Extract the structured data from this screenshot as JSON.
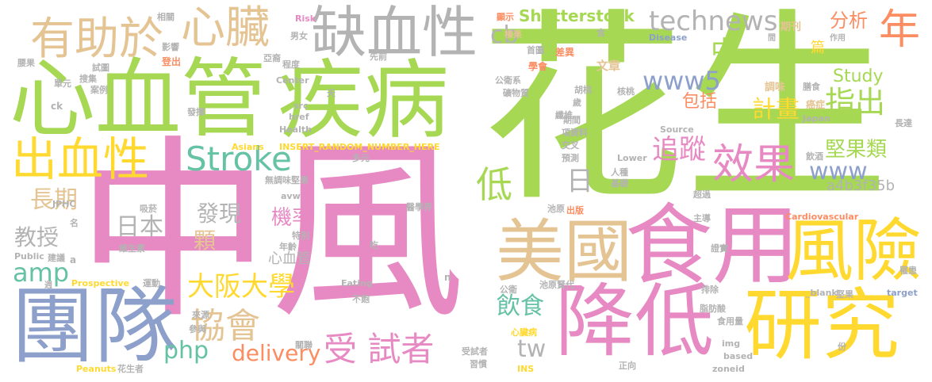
{
  "words": [
    {
      "id": "w0",
      "text": "中風",
      "color": "#e78ac3"
    },
    {
      "id": "w1",
      "text": "花生",
      "color": "#a6d854"
    },
    {
      "id": "w2",
      "text": "心血管",
      "color": "#a6d854"
    },
    {
      "id": "w3",
      "text": "疾病",
      "color": "#a6d854"
    },
    {
      "id": "w4",
      "text": "團隊",
      "color": "#8da0cb"
    },
    {
      "id": "w5",
      "text": "降低",
      "color": "#e78ac3"
    },
    {
      "id": "w6",
      "text": "食用",
      "color": "#e78ac3"
    },
    {
      "id": "w7",
      "text": "研究",
      "color": "#ffd92f"
    },
    {
      "id": "w8",
      "text": "風險",
      "color": "#ffd92f"
    },
    {
      "id": "w9",
      "text": "美國",
      "color": "#e5c494"
    },
    {
      "id": "w10",
      "text": "缺血性",
      "color": "#b3b3b3"
    },
    {
      "id": "w11",
      "text": "有助於",
      "color": "#e5c494"
    },
    {
      "id": "w12",
      "text": "心臟",
      "color": "#e5c494"
    },
    {
      "id": "w13",
      "text": "出血性",
      "color": "#ffd92f"
    },
    {
      "id": "w14",
      "text": "Stroke",
      "color": "#66c2a5"
    },
    {
      "id": "w15",
      "text": "technews",
      "color": "#b3b3b3"
    },
    {
      "id": "w16",
      "text": "效果",
      "color": "#e78ac3"
    },
    {
      "id": "w17",
      "text": "受 試者",
      "color": "#e78ac3"
    },
    {
      "id": "w18",
      "text": "協會",
      "color": "#e5c494"
    },
    {
      "id": "w19",
      "text": "大阪大學",
      "color": "#ffd92f"
    },
    {
      "id": "w20",
      "text": "delivery",
      "color": "#fc8d62"
    },
    {
      "id": "w21",
      "text": "php",
      "color": "#66c2a5"
    },
    {
      "id": "w22",
      "text": "amp",
      "color": "#66c2a5"
    },
    {
      "id": "w23",
      "text": "年",
      "color": "#fc8d62"
    },
    {
      "id": "w24",
      "text": "Shutterstock",
      "color": "#a6d854"
    },
    {
      "id": "w25",
      "text": "www5",
      "color": "#8da0cb"
    },
    {
      "id": "w26",
      "text": "追蹤",
      "color": "#e78ac3"
    },
    {
      "id": "w27",
      "text": "指出",
      "color": "#a6d854"
    },
    {
      "id": "w28",
      "text": "計畫",
      "color": "#ffd92f"
    },
    {
      "id": "w29",
      "text": "堅果類",
      "color": "#a6d854"
    },
    {
      "id": "w30",
      "text": "www",
      "color": "#8da0cb"
    },
    {
      "id": "w31",
      "text": "包括",
      "color": "#fc8d62"
    },
    {
      "id": "w32",
      "text": "分析",
      "color": "#fc8d62"
    },
    {
      "id": "w33",
      "text": "Study",
      "color": "#a6d854"
    },
    {
      "id": "w34",
      "text": "cb",
      "color": "#b3b3b3"
    },
    {
      "id": "w35",
      "text": "長期",
      "color": "#e5c494"
    },
    {
      "id": "w36",
      "text": "教授",
      "color": "#b3b3b3"
    },
    {
      "id": "w37",
      "text": "日本",
      "color": "#b3b3b3"
    },
    {
      "id": "w38",
      "text": "顆",
      "color": "#e5c494"
    },
    {
      "id": "w39",
      "text": "發現",
      "color": "#b3b3b3"
    },
    {
      "id": "w40",
      "text": "機率",
      "color": "#e78ac3"
    },
    {
      "id": "w41",
      "text": "心血管",
      "color": "#b3b3b3"
    },
    {
      "id": "w42",
      "text": "飲食",
      "color": "#66c2a5"
    },
    {
      "id": "w43",
      "text": "tw",
      "color": "#b3b3b3"
    },
    {
      "id": "w44",
      "text": "a4b3f35b",
      "color": "#b3b3b3"
    },
    {
      "id": "w45",
      "text": "低",
      "color": "#a6d854"
    },
    {
      "id": "w46",
      "text": "日",
      "color": "#b3b3b3"
    },
    {
      "id": "w47",
      "text": "中",
      "color": "#a6d854"
    },
    {
      "id": "w48",
      "text": "篇",
      "color": "#ffd92f"
    },
    {
      "id": "w49",
      "text": "期刊",
      "color": "#e5c494"
    },
    {
      "id": "w50",
      "text": "文章",
      "color": "#e5c494"
    },
    {
      "id": "w51",
      "text": "學會",
      "color": "#fc8d62"
    },
    {
      "id": "w52",
      "text": "調味",
      "color": "#e5c494"
    },
    {
      "id": "w53",
      "text": "膳食",
      "color": "#b3b3b3"
    },
    {
      "id": "w54",
      "text": "癌症",
      "color": "#e5c494"
    },
    {
      "id": "w55",
      "text": "顯示",
      "color": "#fc8d62"
    },
    {
      "id": "w56",
      "text": "含",
      "color": "#b3b3b3"
    },
    {
      "id": "w57",
      "text": "榛果",
      "color": "#e5c494"
    },
    {
      "id": "w58",
      "text": "首圖",
      "color": "#b3b3b3"
    },
    {
      "id": "w59",
      "text": "差異",
      "color": "#fc8d62"
    },
    {
      "id": "w60",
      "text": "Disease",
      "color": "#8da0cb"
    },
    {
      "id": "w61",
      "text": "作用",
      "color": "#b3b3b3"
    },
    {
      "id": "w62",
      "text": "間",
      "color": "#b3b3b3"
    },
    {
      "id": "w63",
      "text": "相關",
      "color": "#b3b3b3"
    },
    {
      "id": "w64",
      "text": "Risk",
      "color": "#e78ac3"
    },
    {
      "id": "w65",
      "text": "影響",
      "color": "#b3b3b3"
    },
    {
      "id": "w66",
      "text": "男女",
      "color": "#b3b3b3"
    },
    {
      "id": "w67",
      "text": "亞裔",
      "color": "#b3b3b3"
    },
    {
      "id": "w68",
      "text": "登出",
      "color": "#fc8d62"
    },
    {
      "id": "w69",
      "text": "程度",
      "color": "#b3b3b3"
    },
    {
      "id": "w70",
      "text": "試圖",
      "color": "#b3b3b3"
    },
    {
      "id": "w71",
      "text": "腰果",
      "color": "#b3b3b3"
    },
    {
      "id": "w72",
      "text": "單元",
      "color": "#b3b3b3"
    },
    {
      "id": "w73",
      "text": "搜集",
      "color": "#b3b3b3"
    },
    {
      "id": "w74",
      "text": "案例",
      "color": "#b3b3b3"
    },
    {
      "id": "w75",
      "text": "ck",
      "color": "#b3b3b3"
    },
    {
      "id": "w76",
      "text": "先前",
      "color": "#b3b3b3"
    },
    {
      "id": "w77",
      "text": "Center",
      "color": "#b3b3b3"
    },
    {
      "id": "w78",
      "text": "公衛系",
      "color": "#b3b3b3"
    },
    {
      "id": "w79",
      "text": "礦物質",
      "color": "#b3b3b3"
    },
    {
      "id": "w80",
      "text": "胡桃",
      "color": "#b3b3b3"
    },
    {
      "id": "w81",
      "text": "歲",
      "color": "#b3b3b3"
    },
    {
      "id": "w82",
      "text": "核桃",
      "color": "#b3b3b3"
    },
    {
      "id": "w83",
      "text": "纖維",
      "color": "#b3b3b3"
    },
    {
      "id": "w84",
      "text": "天",
      "color": "#b3b3b3"
    },
    {
      "id": "w85",
      "text": "src",
      "color": "#b3b3b3"
    },
    {
      "id": "w86",
      "text": "發揮",
      "color": "#b3b3b3"
    },
    {
      "id": "w87",
      "text": "Health",
      "color": "#b3b3b3"
    },
    {
      "id": "w88",
      "text": "href",
      "color": "#b3b3b3"
    },
    {
      "id": "w89",
      "text": "期間",
      "color": "#b3b3b3"
    },
    {
      "id": "w90",
      "text": "項資料",
      "color": "#b3b3b3"
    },
    {
      "id": "w91",
      "text": "交叉",
      "color": "#b3b3b3"
    },
    {
      "id": "w92",
      "text": "預測",
      "color": "#b3b3b3"
    },
    {
      "id": "w93",
      "text": "Source",
      "color": "#b3b3b3"
    },
    {
      "id": "w94",
      "text": "Japan",
      "color": "#b3b3b3"
    },
    {
      "id": "w95",
      "text": "長達",
      "color": "#b3b3b3"
    },
    {
      "id": "w96",
      "text": "罹患",
      "color": "#b3b3b3"
    },
    {
      "id": "w97",
      "text": "Asians",
      "color": "#ffd92f"
    },
    {
      "id": "w98",
      "text": "INSERT_RANDOM_NUMBER_HERE",
      "color": "#ffd92f"
    },
    {
      "id": "w99",
      "text": "飲酒",
      "color": "#b3b3b3"
    },
    {
      "id": "w100",
      "text": "Lower",
      "color": "#b3b3b3"
    },
    {
      "id": "w101",
      "text": "人種",
      "color": "#b3b3b3"
    },
    {
      "id": "w102",
      "text": "基礎",
      "color": "#b3b3b3"
    },
    {
      "id": "w103",
      "text": "無調味堅果",
      "color": "#b3b3b3"
    },
    {
      "id": "w104",
      "text": "多元",
      "color": "#b3b3b3"
    },
    {
      "id": "w105",
      "text": "JPHC",
      "color": "#b3b3b3"
    },
    {
      "id": "w106",
      "text": "avw",
      "color": "#b3b3b3"
    },
    {
      "id": "w107",
      "text": "吸菸",
      "color": "#b3b3b3"
    },
    {
      "id": "w108",
      "text": "醫學界",
      "color": "#b3b3b3"
    },
    {
      "id": "w109",
      "text": "池原",
      "color": "#b3b3b3"
    },
    {
      "id": "w110",
      "text": "名",
      "color": "#b3b3b3"
    },
    {
      "id": "w111",
      "text": "出版",
      "color": "#fc8d62"
    },
    {
      "id": "w112",
      "text": "超過",
      "color": "#b3b3b3"
    },
    {
      "id": "w113",
      "text": "主導",
      "color": "#b3b3b3"
    },
    {
      "id": "w114",
      "text": "Cardiovascular",
      "color": "#fc8d62"
    },
    {
      "id": "w115",
      "text": "特別",
      "color": "#b3b3b3"
    },
    {
      "id": "w116",
      "text": "Public",
      "color": "#b3b3b3"
    },
    {
      "id": "w117",
      "text": "建議",
      "color": "#b3b3b3"
    },
    {
      "id": "w118",
      "text": "a",
      "color": "#b3b3b3"
    },
    {
      "id": "w119",
      "text": "維生素",
      "color": "#b3b3b3"
    },
    {
      "id": "w120",
      "text": "年齡",
      "color": "#b3b3b3"
    },
    {
      "id": "w121",
      "text": "吃",
      "color": "#b3b3b3"
    },
    {
      "id": "w122",
      "text": "證實",
      "color": "#b3b3b3"
    },
    {
      "id": "w123",
      "text": "Prospective",
      "color": "#ffd92f"
    },
    {
      "id": "w124",
      "text": "運動",
      "color": "#b3b3b3"
    },
    {
      "id": "w125",
      "text": "週",
      "color": "#b3b3b3"
    },
    {
      "id": "w126",
      "text": "n",
      "color": "#b3b3b3"
    },
    {
      "id": "w127",
      "text": "Eating",
      "color": "#b3b3b3"
    },
    {
      "id": "w128",
      "text": "公衛",
      "color": "#b3b3b3"
    },
    {
      "id": "w129",
      "text": "池原賢代",
      "color": "#b3b3b3"
    },
    {
      "id": "w130",
      "text": "排除",
      "color": "#b3b3b3"
    },
    {
      "id": "w131",
      "text": "不飽",
      "color": "#b3b3b3"
    },
    {
      "id": "w132",
      "text": "_blank",
      "color": "#b3b3b3"
    },
    {
      "id": "w133",
      "text": "堅果",
      "color": "#b3b3b3"
    },
    {
      "id": "w134",
      "text": "target",
      "color": "#8da0cb"
    },
    {
      "id": "w135",
      "text": "來源",
      "color": "#b3b3b3"
    },
    {
      "id": "w136",
      "text": "參與",
      "color": "#b3b3b3"
    },
    {
      "id": "w137",
      "text": "心臟病",
      "color": "#ffd92f"
    },
    {
      "id": "w138",
      "text": "脂肪酸",
      "color": "#b3b3b3"
    },
    {
      "id": "w139",
      "text": "食用量",
      "color": "#b3b3b3"
    },
    {
      "id": "w140",
      "text": "關聯",
      "color": "#b3b3b3"
    },
    {
      "id": "w141",
      "text": "受試者",
      "color": "#b3b3b3"
    },
    {
      "id": "w142",
      "text": "img",
      "color": "#b3b3b3"
    },
    {
      "id": "w143",
      "text": "based",
      "color": "#b3b3b3"
    },
    {
      "id": "w144",
      "text": "習慣",
      "color": "#b3b3b3"
    },
    {
      "id": "w145",
      "text": "正向",
      "color": "#b3b3b3"
    },
    {
      "id": "w146",
      "text": "zoneid",
      "color": "#b3b3b3"
    },
    {
      "id": "w147",
      "text": "份",
      "color": "#b3b3b3"
    },
    {
      "id": "w148",
      "text": "Peanuts",
      "color": "#ffd92f"
    },
    {
      "id": "w149",
      "text": "花生者",
      "color": "#b3b3b3"
    },
    {
      "id": "w150",
      "text": "INS",
      "color": "#ffd92f"
    }
  ]
}
